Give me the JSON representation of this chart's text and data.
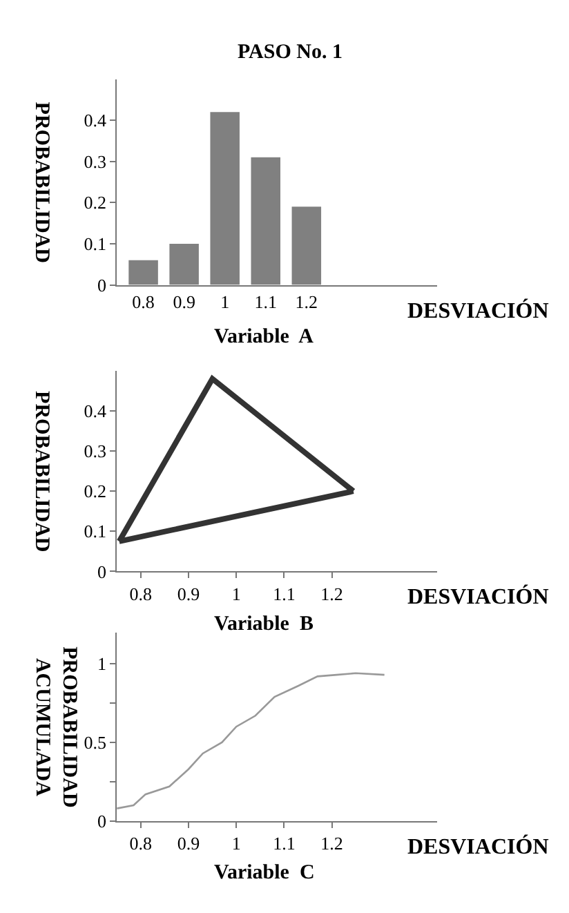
{
  "chart_data": [
    {
      "type": "bar",
      "title": "PASO No. 1",
      "xlabel": "DESVIACIÓN",
      "ylabel": "PROBABILIDAD",
      "annotations": [
        "Variable  A"
      ],
      "categories": [
        "0.8",
        "0.9",
        "1",
        "1.1",
        "1.2"
      ],
      "series": [
        {
          "color": "#808080",
          "values": [
            0.06,
            0.1,
            0.42,
            0.31,
            0.19
          ]
        }
      ],
      "ylim": [
        0,
        0.5
      ],
      "yticks": [
        0,
        0.1,
        0.2,
        0.3,
        0.4
      ],
      "grid": false
    },
    {
      "type": "line",
      "xlabel": "DESVIACIÓN",
      "ylabel": "PROBABILIDAD",
      "annotations": [
        "Variable  B"
      ],
      "series": [
        {
          "color": "#333333",
          "x": [
            0.755,
            0.95,
            1.245
          ],
          "values": [
            0.075,
            0.48,
            0.2
          ]
        },
        {
          "color": "#333333",
          "x": [
            0.755,
            1.245
          ],
          "values": [
            0.075,
            0.2
          ]
        }
      ],
      "xlim": [
        0.75,
        1.42
      ],
      "xticks": [
        0.8,
        0.9,
        1,
        1.1,
        1.2
      ],
      "ylim": [
        0,
        0.5
      ],
      "yticks": [
        0,
        0.1,
        0.2,
        0.3,
        0.4
      ],
      "grid": false,
      "line_style": "solid"
    },
    {
      "type": "line",
      "xlabel": "DESVIACIÓN",
      "ylabel": "PROBABILIDAD\nACUMULADA",
      "annotations": [
        "Variable  C"
      ],
      "x": [
        0.75,
        0.785,
        0.81,
        0.86,
        0.9,
        0.93,
        0.97,
        1.0,
        1.04,
        1.08,
        1.13,
        1.17,
        1.21,
        1.25,
        1.31
      ],
      "series": [
        {
          "color": "#999999",
          "values": [
            0.08,
            0.1,
            0.17,
            0.22,
            0.33,
            0.43,
            0.5,
            0.6,
            0.67,
            0.79,
            0.86,
            0.92,
            0.93,
            0.94,
            0.93
          ]
        }
      ],
      "xlim": [
        0.75,
        1.42
      ],
      "xticks": [
        0.8,
        0.9,
        1,
        1.1,
        1.2
      ],
      "ylim": [
        0,
        1.2
      ],
      "yticks": [
        0,
        {
          "value": 0.25,
          "label": null
        },
        0.5,
        {
          "value": 0.75,
          "label": null
        },
        1
      ],
      "grid": false,
      "line_style": "solid"
    }
  ]
}
